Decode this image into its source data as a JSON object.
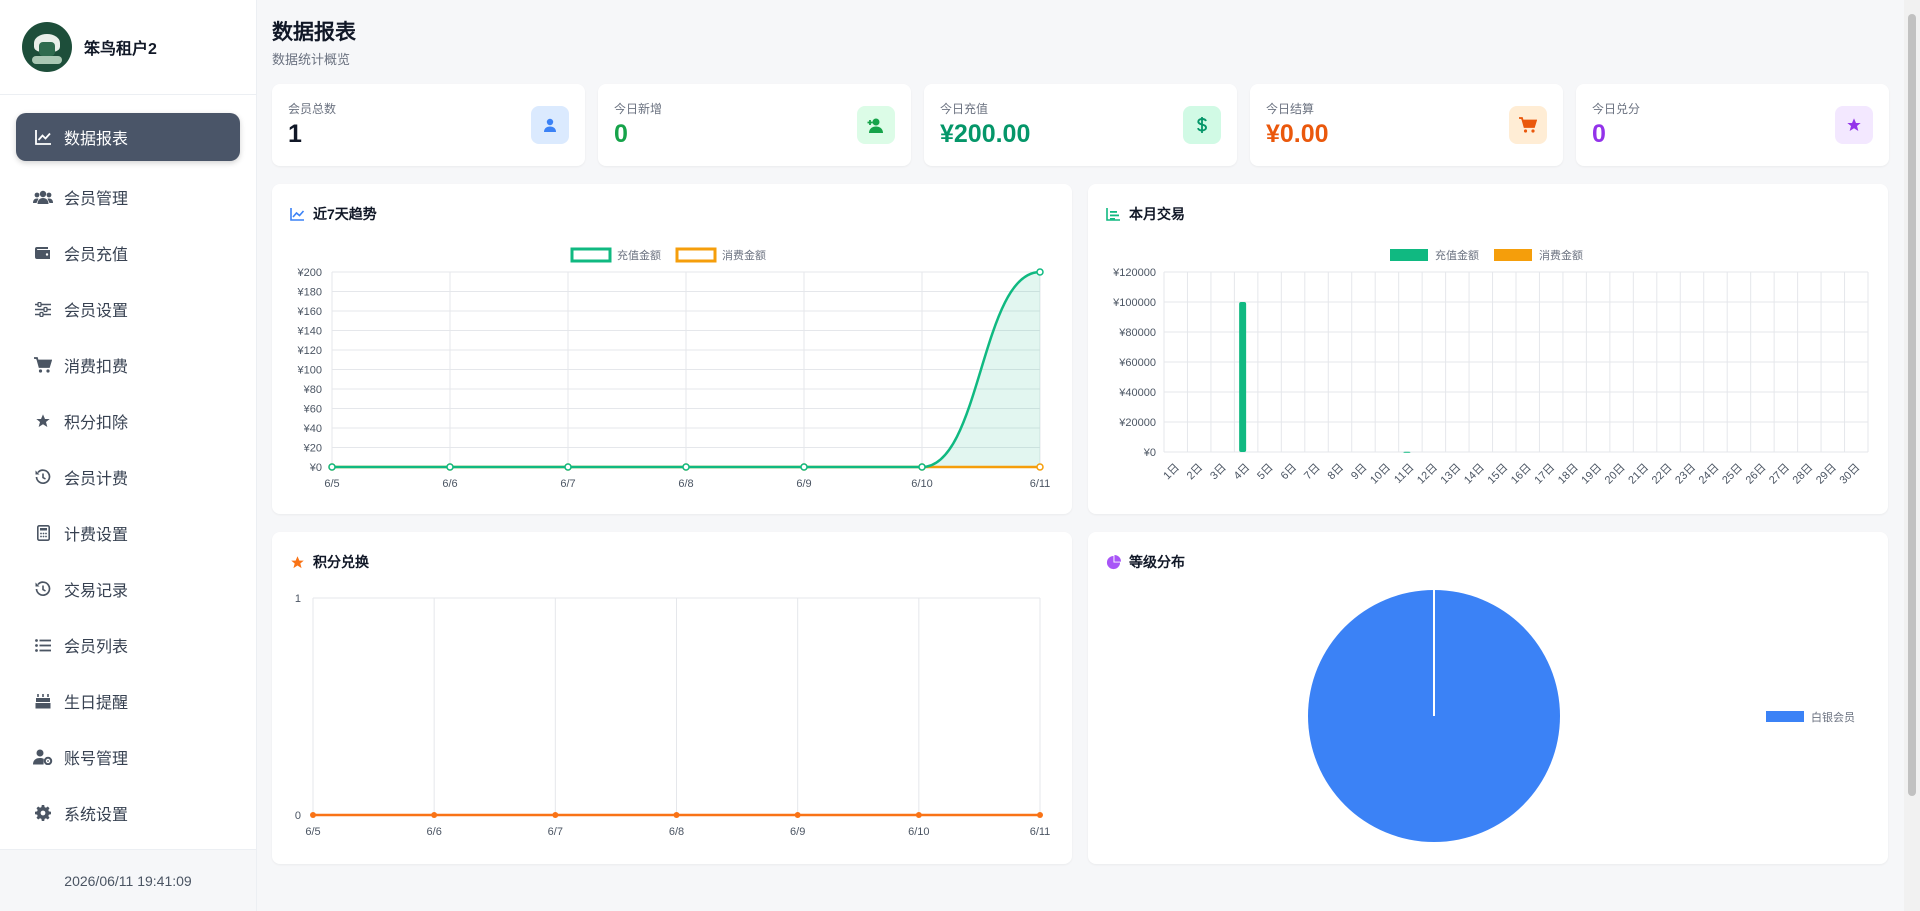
{
  "brand": {
    "name": "笨鸟租户2"
  },
  "sidebar": {
    "items": [
      {
        "label": "数据报表",
        "icon": "line-chart-icon",
        "active": true
      },
      {
        "label": "会员管理",
        "icon": "users-icon"
      },
      {
        "label": "会员充值",
        "icon": "wallet-icon"
      },
      {
        "label": "会员设置",
        "icon": "sliders-icon"
      },
      {
        "label": "消费扣费",
        "icon": "cart-icon"
      },
      {
        "label": "积分扣除",
        "icon": "star-icon"
      },
      {
        "label": "会员计费",
        "icon": "history-icon"
      },
      {
        "label": "计费设置",
        "icon": "calculator-icon"
      },
      {
        "label": "交易记录",
        "icon": "history-icon"
      },
      {
        "label": "会员列表",
        "icon": "list-icon"
      },
      {
        "label": "生日提醒",
        "icon": "birthday-cake-icon"
      },
      {
        "label": "账号管理",
        "icon": "user-cog-icon"
      },
      {
        "label": "系统设置",
        "icon": "gear-icon"
      }
    ],
    "footer_time": "2026/06/11 19:41:09"
  },
  "header": {
    "title": "数据报表",
    "subtitle": "数据统计概览"
  },
  "stats": [
    {
      "label": "会员总数",
      "value": "1",
      "color": "#111827",
      "icon": "user-icon",
      "icon_bg": "#dbeafe",
      "icon_color": "#3b82f6"
    },
    {
      "label": "今日新增",
      "value": "0",
      "color": "#16a34a",
      "icon": "user-plus-icon",
      "icon_bg": "#dcfce7",
      "icon_color": "#16a34a"
    },
    {
      "label": "今日充值",
      "value": "¥200.00",
      "color": "#059669",
      "icon": "dollar-icon",
      "icon_bg": "#d1fae5",
      "icon_color": "#059669"
    },
    {
      "label": "今日结算",
      "value": "¥0.00",
      "color": "#ea580c",
      "icon": "cart-icon",
      "icon_bg": "#ffedd5",
      "icon_color": "#ea580c"
    },
    {
      "label": "今日兑分",
      "value": "0",
      "color": "#9333ea",
      "icon": "star-icon",
      "icon_bg": "#f3e8ff",
      "icon_color": "#9333ea"
    }
  ],
  "charts": {
    "trend": {
      "title": "近7天趋势"
    },
    "monthly": {
      "title": "本月交易"
    },
    "points": {
      "title": "积分兑换"
    },
    "levels": {
      "title": "等级分布"
    }
  },
  "chart_data": [
    {
      "type": "line",
      "title": "近7天趋势",
      "x": [
        "6/5",
        "6/6",
        "6/7",
        "6/8",
        "6/9",
        "6/10",
        "6/11"
      ],
      "series": [
        {
          "name": "充值金额",
          "values": [
            0,
            0,
            0,
            0,
            0,
            0,
            200
          ],
          "color": "#10b981"
        },
        {
          "name": "消费金额",
          "values": [
            0,
            0,
            0,
            0,
            0,
            0,
            0
          ],
          "color": "#f59e0b"
        }
      ],
      "ylim": [
        0,
        200
      ],
      "yticks": [
        "¥0",
        "¥20",
        "¥40",
        "¥60",
        "¥80",
        "¥100",
        "¥120",
        "¥140",
        "¥160",
        "¥180",
        "¥200"
      ],
      "legend": "top",
      "grid": true
    },
    {
      "type": "bar",
      "title": "本月交易",
      "categories": [
        "1日",
        "2日",
        "3日",
        "4日",
        "5日",
        "6日",
        "7日",
        "8日",
        "9日",
        "10日",
        "11日",
        "12日",
        "13日",
        "14日",
        "15日",
        "16日",
        "17日",
        "18日",
        "19日",
        "20日",
        "21日",
        "22日",
        "23日",
        "24日",
        "25日",
        "26日",
        "27日",
        "28日",
        "29日",
        "30日"
      ],
      "series": [
        {
          "name": "充值金额",
          "values": [
            0,
            0,
            0,
            100000,
            0,
            0,
            0,
            0,
            0,
            0,
            200,
            0,
            0,
            0,
            0,
            0,
            0,
            0,
            0,
            0,
            0,
            0,
            0,
            0,
            0,
            0,
            0,
            0,
            0,
            0
          ],
          "color": "#10b981"
        },
        {
          "name": "消费金额",
          "values": [
            0,
            0,
            0,
            0,
            0,
            0,
            0,
            0,
            0,
            0,
            0,
            0,
            0,
            0,
            0,
            0,
            0,
            0,
            0,
            0,
            0,
            0,
            0,
            0,
            0,
            0,
            0,
            0,
            0,
            0
          ],
          "color": "#f59e0b"
        }
      ],
      "ylim": [
        0,
        120000
      ],
      "yticks": [
        "¥0",
        "¥20000",
        "¥40000",
        "¥60000",
        "¥80000",
        "¥100000",
        "¥120000"
      ],
      "legend": "top",
      "grid": true
    },
    {
      "type": "line",
      "title": "积分兑换",
      "x": [
        "6/5",
        "6/6",
        "6/7",
        "6/8",
        "6/9",
        "6/10",
        "6/11"
      ],
      "series": [
        {
          "values": [
            0,
            0,
            0,
            0,
            0,
            0,
            0
          ],
          "color": "#f97316"
        }
      ],
      "ylim": [
        0,
        1
      ],
      "yticks": [
        "0",
        "1"
      ],
      "grid": true
    },
    {
      "type": "pie",
      "title": "等级分布",
      "categories": [
        "白银会员"
      ],
      "values": [
        1
      ],
      "colors": [
        "#3b82f6"
      ],
      "legend": "right"
    }
  ]
}
